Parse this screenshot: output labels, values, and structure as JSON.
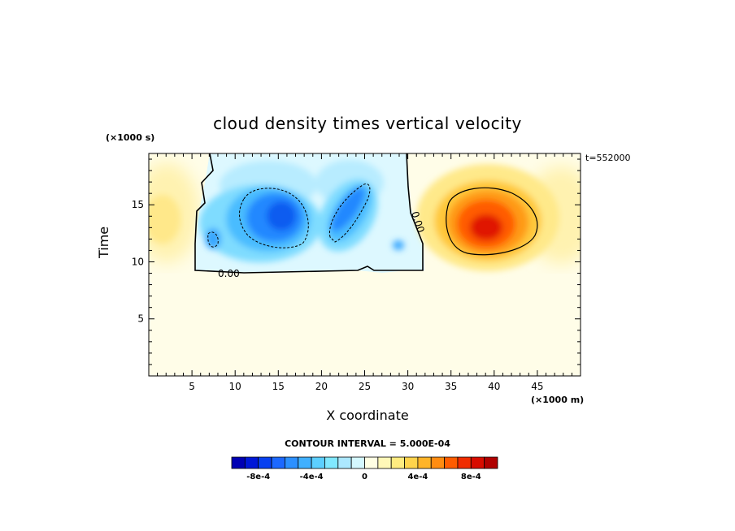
{
  "chart_data": {
    "type": "heatmap",
    "title": "cloud density times vertical velocity",
    "xlabel": "X coordinate",
    "ylabel": "Time",
    "x_unit": "(×1000 m)",
    "y_unit": "(×1000 s)",
    "timestamp": "t=552000",
    "xlim": [
      0,
      50
    ],
    "ylim": [
      0,
      19.5
    ],
    "x_ticks": [
      "5",
      "10",
      "15",
      "20",
      "25",
      "30",
      "35",
      "40",
      "45"
    ],
    "y_ticks": [
      "5",
      "10",
      "15"
    ],
    "contour_interval": "CONTOUR INTERVAL = 5.000E-04",
    "zero_contour_label": "0.00",
    "colorbar": {
      "levels": [
        -0.001,
        -0.0009,
        -0.0008,
        -0.0007,
        -0.0006,
        -0.0005,
        -0.0004,
        -0.0003,
        -0.0002,
        -0.0001,
        0,
        0.0001,
        0.0002,
        0.0003,
        0.0004,
        0.0005,
        0.0006,
        0.0007,
        0.0008,
        0.0009,
        0.001
      ],
      "tick_labels": [
        "-8e-4",
        "-4e-4",
        "0",
        "4e-4",
        "8e-4"
      ],
      "tick_values": [
        -0.0008,
        -0.0004,
        0,
        0.0004,
        0.0008
      ],
      "colors": [
        "#0000b4",
        "#0018d8",
        "#0840f0",
        "#1c68ff",
        "#2c90ff",
        "#40b0ff",
        "#5ccfff",
        "#80e8ff",
        "#ace8ff",
        "#d4f8ff",
        "#ffffe4",
        "#fff8b8",
        "#ffec80",
        "#ffd44c",
        "#ffb428",
        "#ff8c10",
        "#ff5c00",
        "#f02c00",
        "#d80c00",
        "#b00000"
      ]
    },
    "features": [
      {
        "name": "cloud region",
        "x_range": [
          5.5,
          32
        ],
        "y_range": [
          9.5,
          19.5
        ],
        "value": 0
      }
    ],
    "centers": [
      {
        "x": 16,
        "y": 14.5,
        "value": -0.0007
      },
      {
        "x": 22.5,
        "y": 14.5,
        "value": -0.0006
      },
      {
        "x": 7.5,
        "y": 12.5,
        "value": -0.00035
      },
      {
        "x": 39,
        "y": 13,
        "value": 0.0009
      }
    ]
  }
}
